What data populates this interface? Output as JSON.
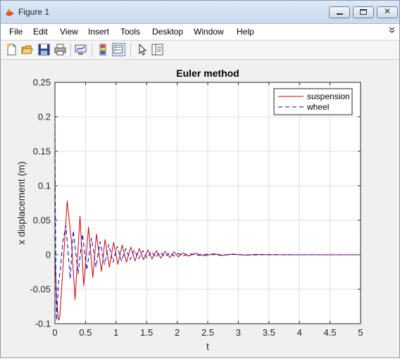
{
  "window": {
    "title": "Figure 1",
    "minimize_glyph": "",
    "maximize_glyph": "",
    "close_glyph": "✕"
  },
  "menu": {
    "items": [
      "File",
      "Edit",
      "View",
      "Insert",
      "Tools",
      "Desktop",
      "Window",
      "Help"
    ],
    "overflow_icon": "double-chevron-down-icon"
  },
  "toolbar": {
    "icons": [
      "new-figure-icon",
      "open-file-icon",
      "save-icon",
      "print-icon",
      "link-plot-icon",
      "colorbar-icon",
      "legend-icon",
      "pointer-icon",
      "property-editor-icon"
    ]
  },
  "colors": {
    "suspension": "#cc0000",
    "wheel": "#0000cc",
    "grid": "#dcdcdc"
  },
  "chart_data": {
    "type": "line",
    "title": "Euler method",
    "xlabel": "t",
    "ylabel": "x displacement (m)",
    "xlim": [
      0,
      5
    ],
    "ylim": [
      -0.1,
      0.25
    ],
    "xticks": [
      "0",
      "0.5",
      "1",
      "1.5",
      "2",
      "2.5",
      "3",
      "3.5",
      "4",
      "4.5",
      "5"
    ],
    "yticks": [
      "-0.1",
      "-0.05",
      "0",
      "0.05",
      "0.1",
      "0.15",
      "0.2",
      "0.25"
    ],
    "grid": true,
    "legend": {
      "position": "top-right"
    },
    "series": [
      {
        "name": "suspension",
        "style": "solid",
        "x": [
          0,
          0.03,
          0.06,
          0.08,
          0.13,
          0.2,
          0.27,
          0.33,
          0.41,
          0.47,
          0.55,
          0.62,
          0.68,
          0.76,
          0.82,
          0.89,
          0.96,
          1.03,
          1.1,
          1.17,
          1.24,
          1.31,
          1.38,
          1.45,
          1.52,
          1.59,
          1.66,
          1.73,
          1.8,
          1.88,
          1.95,
          2.02,
          2.1,
          2.18,
          2.3,
          2.45,
          2.6,
          2.75,
          2.9,
          3.1,
          3.3,
          3.5,
          4.0,
          4.5,
          5.0
        ],
        "y": [
          0,
          -0.07,
          -0.095,
          -0.09,
          -0.02,
          0.078,
          0.02,
          -0.065,
          0.056,
          -0.045,
          0.04,
          -0.033,
          0.03,
          -0.024,
          0.022,
          -0.018,
          0.018,
          -0.014,
          0.014,
          -0.011,
          0.011,
          -0.009,
          0.009,
          -0.007,
          0.007,
          -0.006,
          0.006,
          -0.005,
          0.005,
          -0.004,
          0.004,
          -0.003,
          0.003,
          -0.002,
          0.002,
          -0.0015,
          0.0015,
          -0.001,
          0.001,
          -0.0005,
          0.0005,
          0,
          0,
          0,
          0
        ]
      },
      {
        "name": "wheel",
        "style": "dashed",
        "x": [
          0,
          0.005,
          0.015,
          0.025,
          0.04,
          0.06,
          0.09,
          0.13,
          0.18,
          0.25,
          0.3,
          0.38,
          0.45,
          0.52,
          0.6,
          0.67,
          0.74,
          0.81,
          0.88,
          0.95,
          1.02,
          1.09,
          1.16,
          1.23,
          1.3,
          1.37,
          1.44,
          1.51,
          1.58,
          1.65,
          1.72,
          1.8,
          1.88,
          1.95,
          2.02,
          2.1,
          2.2,
          2.35,
          2.5,
          2.7,
          2.9,
          3.2,
          3.5,
          4.0,
          4.5,
          5.0
        ],
        "y": [
          0.22,
          0.1,
          -0.02,
          -0.095,
          -0.07,
          -0.04,
          -0.02,
          0.02,
          0.042,
          -0.035,
          0.035,
          -0.028,
          0.03,
          -0.022,
          0.024,
          -0.018,
          0.019,
          -0.014,
          0.015,
          -0.011,
          0.012,
          -0.009,
          0.009,
          -0.007,
          0.007,
          -0.006,
          0.006,
          -0.005,
          0.005,
          -0.004,
          0.004,
          -0.003,
          0.003,
          -0.002,
          0.002,
          -0.0015,
          0.0015,
          -0.001,
          0.001,
          -0.0007,
          0.0007,
          -0.0004,
          0.0003,
          0,
          0,
          0
        ]
      }
    ]
  }
}
